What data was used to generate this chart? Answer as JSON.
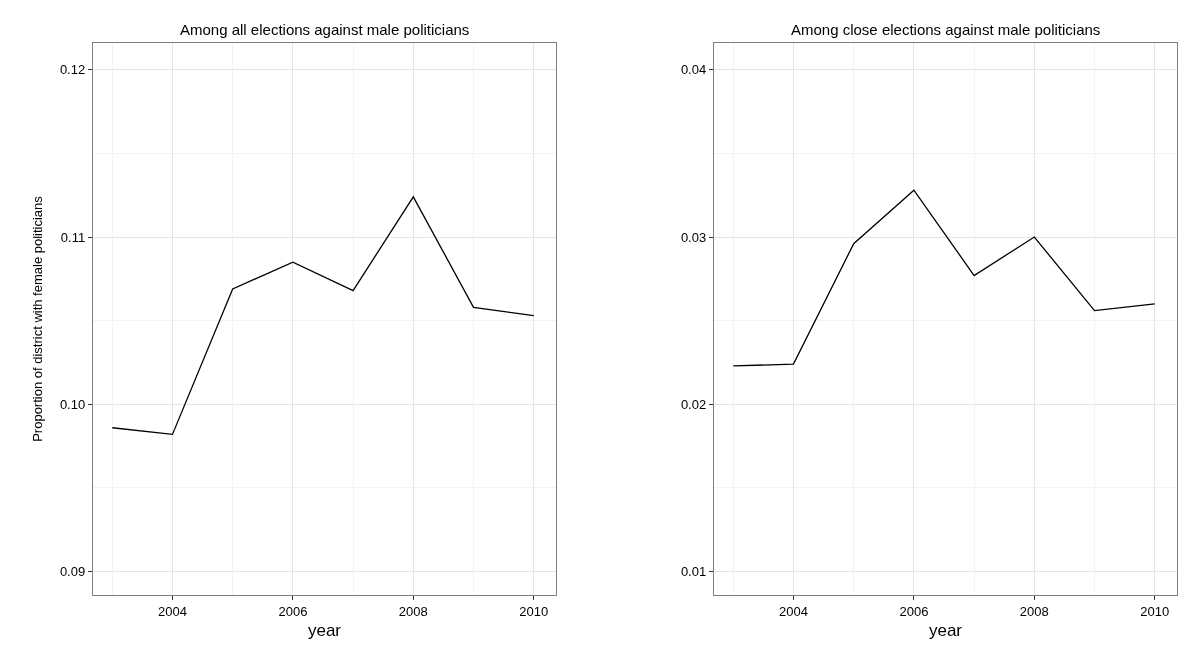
{
  "chart_data": [
    {
      "type": "line",
      "title": "Among all elections against male politicians",
      "xlabel": "year",
      "ylabel": "Proportion of district with female politicians",
      "x": [
        2003,
        2004,
        2005,
        2006,
        2007,
        2008,
        2009,
        2010
      ],
      "series": [
        {
          "color": "#000000",
          "values": [
            0.0986,
            0.0982,
            0.1069,
            0.1085,
            0.1068,
            0.1124,
            0.1058,
            0.1053
          ]
        }
      ],
      "xlim": [
        2002.68,
        2010.37
      ],
      "xticks": [
        2004,
        2006,
        2008,
        2010
      ],
      "ylim": [
        0.0886,
        0.1216
      ],
      "yticks": [
        0.09,
        {
          "value": 0.1,
          "label": "0.10"
        },
        0.11,
        0.12
      ],
      "grid": true,
      "marker": "none",
      "line_style": "solid"
    },
    {
      "type": "line",
      "title": "Among close elections against male politicians",
      "xlabel": "year",
      "x": [
        2003,
        2004,
        2005,
        2006,
        2007,
        2008,
        2009,
        2010
      ],
      "series": [
        {
          "color": "#000000",
          "values": [
            0.0223,
            0.0224,
            0.0296,
            0.0328,
            0.0277,
            0.03,
            0.0256,
            0.026
          ]
        }
      ],
      "xlim": [
        2002.68,
        2010.37
      ],
      "xticks": [
        2004,
        2006,
        2008,
        2010
      ],
      "ylim": [
        0.0086,
        0.0416
      ],
      "yticks": [
        0.01,
        0.02,
        0.03,
        0.04
      ],
      "grid": true,
      "marker": "none",
      "line_style": "solid"
    }
  ]
}
